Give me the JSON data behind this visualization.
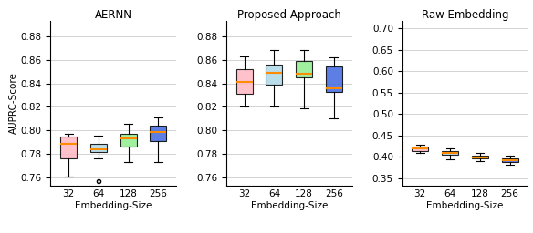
{
  "titles": [
    "AERNN",
    "Proposed Approach",
    "Raw Embedding"
  ],
  "xlabel": "Embedding-Size",
  "ylabel": "AUPRC-Score",
  "categories": [
    "32",
    "64",
    "128",
    "256"
  ],
  "colors": [
    "#FFB6C1",
    "#ADD8E6",
    "#90EE90",
    "#4169E1"
  ],
  "median_color": "#FF8C00",
  "subplot1": {
    "ylim": [
      0.7535,
      0.893
    ],
    "yticks": [
      0.76,
      0.78,
      0.8,
      0.82,
      0.84,
      0.86,
      0.88
    ],
    "boxes": [
      {
        "whislo": 0.761,
        "q1": 0.776,
        "med": 0.789,
        "q3": 0.795,
        "whishi": 0.797,
        "fliers": []
      },
      {
        "whislo": 0.776,
        "q1": 0.782,
        "med": 0.784,
        "q3": 0.789,
        "whishi": 0.796,
        "fliers": [
          0.757
        ]
      },
      {
        "whislo": 0.773,
        "q1": 0.786,
        "med": 0.793,
        "q3": 0.797,
        "whishi": 0.806,
        "fliers": []
      },
      {
        "whislo": 0.773,
        "q1": 0.791,
        "med": 0.799,
        "q3": 0.804,
        "whishi": 0.811,
        "fliers": []
      }
    ]
  },
  "subplot2": {
    "ylim": [
      0.7535,
      0.893
    ],
    "yticks": [
      0.76,
      0.78,
      0.8,
      0.82,
      0.84,
      0.86,
      0.88
    ],
    "boxes": [
      {
        "whislo": 0.82,
        "q1": 0.831,
        "med": 0.841,
        "q3": 0.852,
        "whishi": 0.863,
        "fliers": []
      },
      {
        "whislo": 0.82,
        "q1": 0.839,
        "med": 0.849,
        "q3": 0.856,
        "whishi": 0.868,
        "fliers": []
      },
      {
        "whislo": 0.819,
        "q1": 0.845,
        "med": 0.848,
        "q3": 0.859,
        "whishi": 0.868,
        "fliers": []
      },
      {
        "whislo": 0.81,
        "q1": 0.833,
        "med": 0.836,
        "q3": 0.854,
        "whishi": 0.862,
        "fliers": []
      }
    ]
  },
  "subplot3": {
    "ylim": [
      0.333,
      0.718
    ],
    "yticks": [
      0.35,
      0.4,
      0.45,
      0.5,
      0.55,
      0.6,
      0.65,
      0.7
    ],
    "boxes": [
      {
        "whislo": 0.409,
        "q1": 0.414,
        "med": 0.42,
        "q3": 0.423,
        "whishi": 0.428,
        "fliers": []
      },
      {
        "whislo": 0.394,
        "q1": 0.404,
        "med": 0.409,
        "q3": 0.414,
        "whishi": 0.42,
        "fliers": []
      },
      {
        "whislo": 0.389,
        "q1": 0.395,
        "med": 0.399,
        "q3": 0.402,
        "whishi": 0.409,
        "fliers": []
      },
      {
        "whislo": 0.381,
        "q1": 0.387,
        "med": 0.391,
        "q3": 0.396,
        "whishi": 0.402,
        "fliers": []
      }
    ]
  }
}
